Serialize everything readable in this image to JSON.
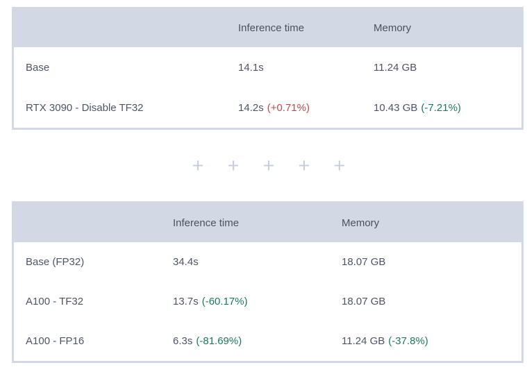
{
  "colors": {
    "header_background": "#d3d9e4",
    "table_border": "#d3d9e4",
    "body_text": "#4c5566",
    "delta_positive_red": "#c0484e",
    "delta_negative_green": "#187a5e",
    "plus_icon": "#c5cfe2"
  },
  "plus_row": {
    "glyph": "+",
    "count": 5
  },
  "tables": [
    {
      "headers": [
        "",
        "Inference time",
        "Memory"
      ],
      "rows": [
        {
          "label": "Base",
          "inference_time": "14.1s",
          "inference_delta": "",
          "memory": "11.24 GB",
          "memory_delta": ""
        },
        {
          "label": "RTX 3090 - Disable TF32",
          "inference_time": "14.2s",
          "inference_delta": "(+0.71%)",
          "memory": "10.43 GB",
          "memory_delta": "(-7.21%)"
        }
      ]
    },
    {
      "headers": [
        "",
        "Inference time",
        "Memory"
      ],
      "rows": [
        {
          "label": "Base (FP32)",
          "inference_time": "34.4s",
          "inference_delta": "",
          "memory": "18.07 GB",
          "memory_delta": ""
        },
        {
          "label": "A100 - TF32",
          "inference_time": "13.7s",
          "inference_delta": "(-60.17%)",
          "memory": "18.07 GB",
          "memory_delta": ""
        },
        {
          "label": "A100 - FP16",
          "inference_time": "6.3s",
          "inference_delta": "(-81.69%)",
          "memory": "11.24 GB",
          "memory_delta": "(-37.8%)"
        }
      ]
    }
  ]
}
